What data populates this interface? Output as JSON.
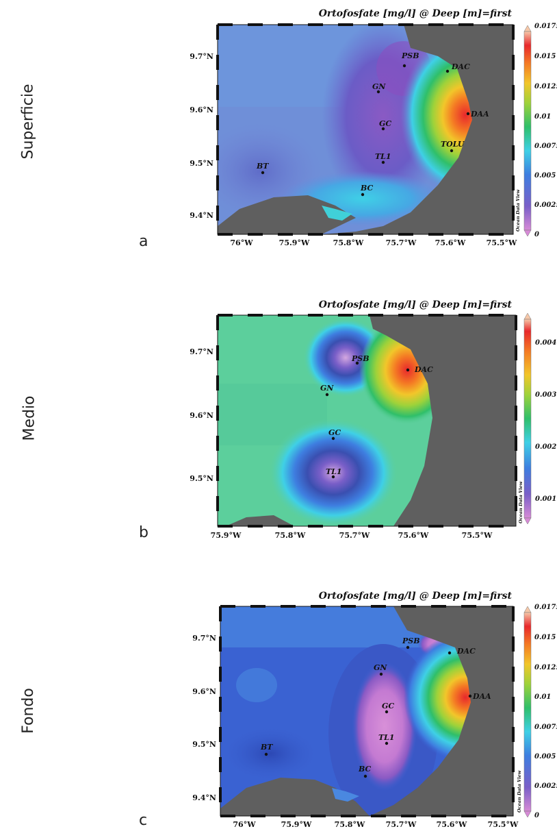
{
  "panels": [
    {
      "id": "a",
      "row_label": "Superficie",
      "letter": "a",
      "title": "Ortofosfate [mg/l] @ Deep [m]=first",
      "lon_ticks": [
        "76°W",
        "75.9°W",
        "75.8°W",
        "75.7°W",
        "75.6°W",
        "75.5°W"
      ],
      "lat_ticks": [
        "9.7°N",
        "9.6°N",
        "9.5°N",
        "9.4°N"
      ],
      "colorbar_ticks": [
        "0.0175",
        "0.015",
        "0.0125",
        "0.01",
        "0.0075",
        "0.005",
        "0.0025",
        "0"
      ],
      "stations": [
        "PSB",
        "DAC",
        "GN",
        "DAA",
        "GC",
        "TOLU",
        "TL1",
        "BT",
        "BC"
      ],
      "watermark": "Ocean Data View"
    },
    {
      "id": "b",
      "row_label": "Medio",
      "letter": "b",
      "title": "Ortofosfate [mg/l] @ Deep [m]=first",
      "lon_ticks": [
        "75.9°W",
        "75.8°W",
        "75.7°W",
        "75.6°W",
        "75.5°W"
      ],
      "lat_ticks": [
        "9.7°N",
        "9.6°N",
        "9.5°N"
      ],
      "colorbar_ticks": [
        "0.004",
        "0.003",
        "0.002",
        "0.001"
      ],
      "stations": [
        "PSB",
        "DAC",
        "GN",
        "GC",
        "TL1"
      ],
      "watermark": "Ocean Data View"
    },
    {
      "id": "c",
      "row_label": "Fondo",
      "letter": "c",
      "title": "Ortofosfate [mg/l] @ Deep [m]=first",
      "lon_ticks": [
        "76°W",
        "75.9°W",
        "75.8°W",
        "75.7°W",
        "75.6°W",
        "75.5°W"
      ],
      "lat_ticks": [
        "9.7°N",
        "9.6°N",
        "9.5°N",
        "9.4°N"
      ],
      "colorbar_ticks": [
        "0.0175",
        "0.015",
        "0.0125",
        "0.01",
        "0.0075",
        "0.005",
        "0.0025",
        "0"
      ],
      "stations": [
        "PSB",
        "DAC",
        "GN",
        "DAA",
        "GC",
        "TL1",
        "BT",
        "BC"
      ],
      "watermark": "Ocean Data View"
    }
  ],
  "colors": {
    "land": "#5f5f5f",
    "frame_dark": "#111111"
  }
}
